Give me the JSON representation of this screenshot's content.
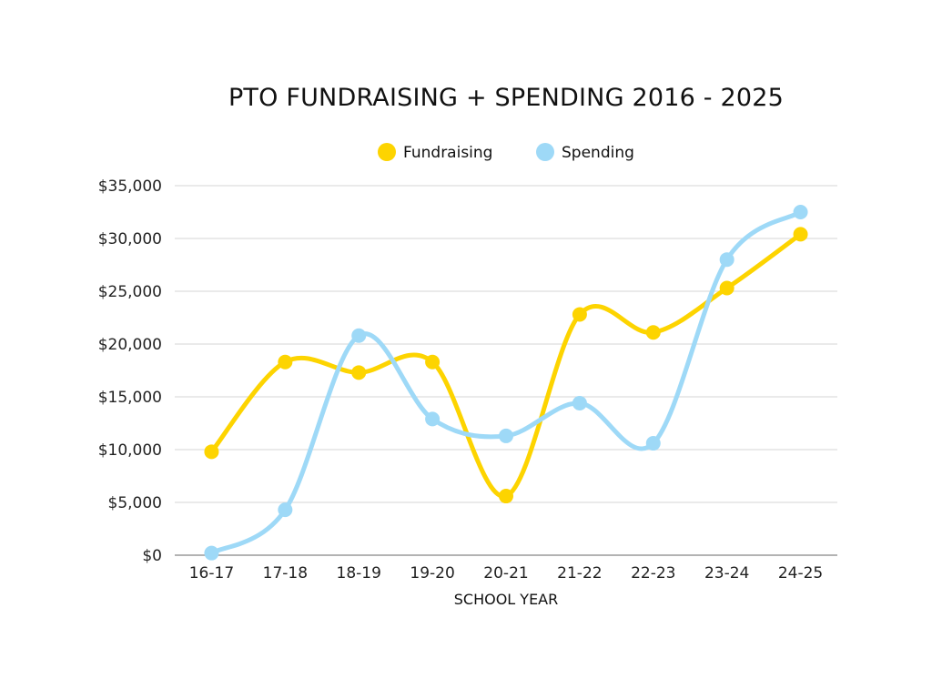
{
  "chart_data": {
    "type": "line",
    "title": "PTO FUNDRAISING + SPENDING 2016 - 2025",
    "xlabel": "SCHOOL YEAR",
    "ylabel": "",
    "categories": [
      "16-17",
      "17-18",
      "18-19",
      "19-20",
      "20-21",
      "21-22",
      "22-23",
      "23-24",
      "24-25"
    ],
    "y_ticks": [
      "$0",
      "$5,000",
      "$10,000",
      "$15,000",
      "$20,000",
      "$25,000",
      "$30,000",
      "$35,000"
    ],
    "ylim": [
      0,
      35000
    ],
    "grid": true,
    "legend_position": "top-center",
    "smooth": true,
    "series": [
      {
        "name": "Fundraising",
        "color": "#FDD400",
        "values": [
          9800,
          18300,
          17300,
          18300,
          5600,
          22800,
          21100,
          25300,
          30400
        ]
      },
      {
        "name": "Spending",
        "color": "#9ED9F7",
        "values": [
          200,
          4300,
          20800,
          12900,
          11300,
          14400,
          10600,
          28000,
          32500
        ]
      }
    ]
  }
}
